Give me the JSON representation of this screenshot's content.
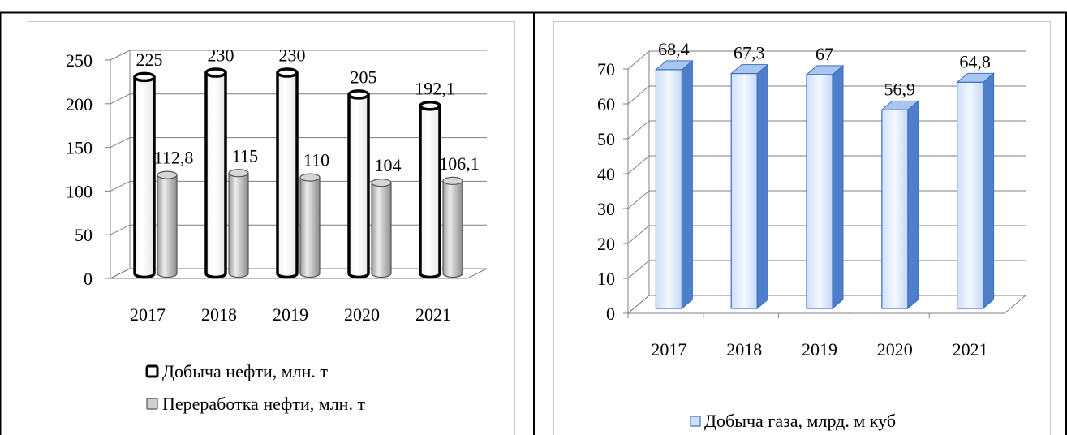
{
  "chart_data": [
    {
      "type": "bar",
      "title": "",
      "categories": [
        "2017",
        "2018",
        "2019",
        "2020",
        "2021"
      ],
      "series": [
        {
          "name": "Добыча нефти, млн. т",
          "values": [
            225,
            230,
            230,
            205,
            192.1
          ],
          "labels": [
            "225",
            "230",
            "230",
            "205",
            "192,1"
          ]
        },
        {
          "name": "Переработка нефти, млн. т",
          "values": [
            112.8,
            115,
            110,
            104,
            106.1
          ],
          "labels": [
            "112,8",
            "115",
            "110",
            "104",
            "106,1"
          ]
        }
      ],
      "ylim": [
        0,
        250
      ],
      "yticks": [
        "0",
        "50",
        "100",
        "150",
        "200",
        "250"
      ],
      "grid": true,
      "legend": "bottom",
      "colors": {
        "series_0": "#ffffff",
        "series_1": "#d0d0d0",
        "outline": "#000000"
      }
    },
    {
      "type": "bar",
      "title": "",
      "categories": [
        "2017",
        "2018",
        "2019",
        "2020",
        "2021"
      ],
      "series": [
        {
          "name": "Добыча газа, млрд. м куб",
          "values": [
            68.4,
            67.3,
            67,
            56.9,
            64.8
          ],
          "labels": [
            "68,4",
            "67,3",
            "67",
            "56,9",
            "64,8"
          ]
        }
      ],
      "ylim": [
        0,
        70
      ],
      "yticks": [
        "0",
        "10",
        "20",
        "30",
        "40",
        "50",
        "60",
        "70"
      ],
      "grid": true,
      "legend": "bottom",
      "colors": {
        "series_0": "#dce9ff",
        "outline": "#3d6fc0",
        "side": "#4f7fcb",
        "top": "#a9c6f1"
      }
    }
  ]
}
